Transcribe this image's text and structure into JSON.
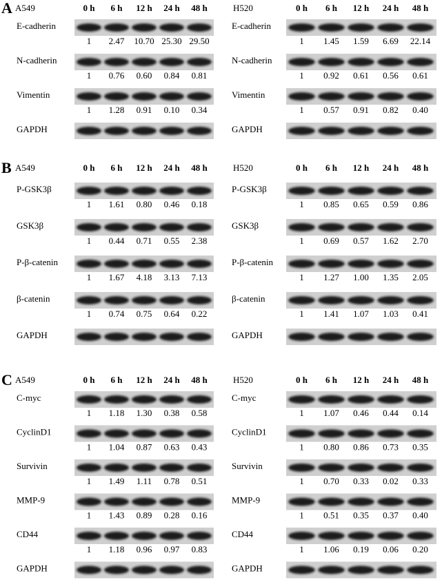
{
  "panels": [
    {
      "letter": "A",
      "halves": [
        {
          "cell_line": "A549",
          "times": [
            "0 h",
            "6 h",
            "12 h",
            "24 h",
            "48 h"
          ],
          "blots": [
            {
              "name": "E-cadherin",
              "values": [
                "1",
                "2.47",
                "10.70",
                "25.30",
                "29.50"
              ]
            },
            {
              "name": "N-cadherin",
              "values": [
                "1",
                "0.76",
                "0.60",
                "0.84",
                "0.81"
              ]
            },
            {
              "name": "Vimentin",
              "values": [
                "1",
                "1.28",
                "0.91",
                "0.10",
                "0.34"
              ]
            },
            {
              "name": "GAPDH"
            }
          ]
        },
        {
          "cell_line": "H520",
          "times": [
            "0 h",
            "6 h",
            "12 h",
            "24 h",
            "48 h"
          ],
          "blots": [
            {
              "name": "E-cadherin",
              "values": [
                "1",
                "1.45",
                "1.59",
                "6.69",
                "22.14"
              ]
            },
            {
              "name": "N-cadherin",
              "values": [
                "1",
                "0.92",
                "0.61",
                "0.56",
                "0.61"
              ]
            },
            {
              "name": "Vimentin",
              "values": [
                "1",
                "0.57",
                "0.91",
                "0.82",
                "0.40"
              ]
            },
            {
              "name": "GAPDH"
            }
          ]
        }
      ]
    },
    {
      "letter": "B",
      "halves": [
        {
          "cell_line": "A549",
          "times": [
            "0 h",
            "6 h",
            "12 h",
            "24 h",
            "48 h"
          ],
          "blots": [
            {
              "name": "P-GSK3β",
              "values": [
                "1",
                "1.61",
                "0.80",
                "0.46",
                "0.18"
              ]
            },
            {
              "name": "GSK3β",
              "values": [
                "1",
                "0.44",
                "0.71",
                "0.55",
                "2.38"
              ]
            },
            {
              "name": "P-β-catenin",
              "values": [
                "1",
                "1.67",
                "4.18",
                "3.13",
                "7.13"
              ]
            },
            {
              "name": "β-catenin",
              "values": [
                "1",
                "0.74",
                "0.75",
                "0.64",
                "0.22"
              ]
            },
            {
              "name": "GAPDH"
            }
          ]
        },
        {
          "cell_line": "H520",
          "times": [
            "0 h",
            "6 h",
            "12 h",
            "24 h",
            "48 h"
          ],
          "blots": [
            {
              "name": "P-GSK3β",
              "values": [
                "1",
                "0.85",
                "0.65",
                "0.59",
                "0.86"
              ]
            },
            {
              "name": "GSK3β",
              "values": [
                "1",
                "0.69",
                "0.57",
                "1.62",
                "2.70"
              ]
            },
            {
              "name": "P-β-catenin",
              "values": [
                "1",
                "1.27",
                "1.00",
                "1.35",
                "2.05"
              ]
            },
            {
              "name": "β-catenin",
              "values": [
                "1",
                "1.41",
                "1.07",
                "1.03",
                "0.41"
              ]
            },
            {
              "name": "GAPDH"
            }
          ]
        }
      ]
    },
    {
      "letter": "C",
      "halves": [
        {
          "cell_line": "A549",
          "times": [
            "0 h",
            "6 h",
            "12 h",
            "24 h",
            "48 h"
          ],
          "blots": [
            {
              "name": "C-myc",
              "values": [
                "1",
                "1.18",
                "1.30",
                "0.38",
                "0.58"
              ]
            },
            {
              "name": "CyclinD1",
              "values": [
                "1",
                "1.04",
                "0.87",
                "0.63",
                "0.43"
              ]
            },
            {
              "name": "Survivin",
              "values": [
                "1",
                "1.49",
                "1.11",
                "0.78",
                "0.51"
              ]
            },
            {
              "name": "MMP-9",
              "values": [
                "1",
                "1.43",
                "0.89",
                "0.28",
                "0.16"
              ]
            },
            {
              "name": "CD44",
              "values": [
                "1",
                "1.18",
                "0.96",
                "0.97",
                "0.83"
              ]
            },
            {
              "name": "GAPDH"
            }
          ]
        },
        {
          "cell_line": "H520",
          "times": [
            "0 h",
            "6 h",
            "12 h",
            "24 h",
            "48 h"
          ],
          "blots": [
            {
              "name": "C-myc",
              "values": [
                "1",
                "1.07",
                "0.46",
                "0.44",
                "0.14"
              ]
            },
            {
              "name": "CyclinD1",
              "values": [
                "1",
                "0.80",
                "0.86",
                "0.73",
                "0.35"
              ]
            },
            {
              "name": "Survivin",
              "values": [
                "1",
                "0.70",
                "0.33",
                "0.02",
                "0.33"
              ]
            },
            {
              "name": "MMP-9",
              "values": [
                "1",
                "0.51",
                "0.35",
                "0.37",
                "0.40"
              ]
            },
            {
              "name": "CD44",
              "values": [
                "1",
                "1.06",
                "0.19",
                "0.06",
                "0.20"
              ]
            },
            {
              "name": "GAPDH"
            }
          ]
        }
      ]
    }
  ]
}
